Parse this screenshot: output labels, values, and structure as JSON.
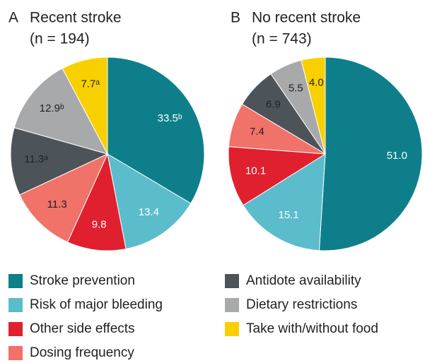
{
  "chart_data": [
    {
      "type": "pie",
      "panel": "A",
      "title": "Recent stroke",
      "subtitle": "(n = 194)",
      "categories": [
        "Stroke prevention",
        "Risk of major bleeding",
        "Other side effects",
        "Dosing frequency",
        "Antidote availability",
        "Dietary restrictions",
        "Take with/without food"
      ],
      "values": [
        33.5,
        13.4,
        9.8,
        11.3,
        11.3,
        12.9,
        7.7
      ],
      "value_labels": [
        "33.5ᵇ",
        "13.4",
        "9.8",
        "11.3",
        "11.3ᵃ",
        "12.9ᵇ",
        "7.7ᵃ"
      ],
      "colors": [
        "#0e7f8a",
        "#5bbccc",
        "#e0202e",
        "#f07268",
        "#4d5459",
        "#a7a9ab",
        "#f8d000"
      ]
    },
    {
      "type": "pie",
      "panel": "B",
      "title": "No recent stroke",
      "subtitle": "(n = 743)",
      "values": [
        51.0,
        15.1,
        10.1,
        7.4,
        6.9,
        5.5,
        4.0
      ],
      "value_labels": [
        "51.0",
        "15.1",
        "10.1",
        "7.4",
        "6.9",
        "5.5",
        "4.0"
      ],
      "colors": [
        "#0e7f8a",
        "#5bbccc",
        "#e0202e",
        "#f07268",
        "#4d5459",
        "#a7a9ab",
        "#f8d000"
      ]
    }
  ]
}
